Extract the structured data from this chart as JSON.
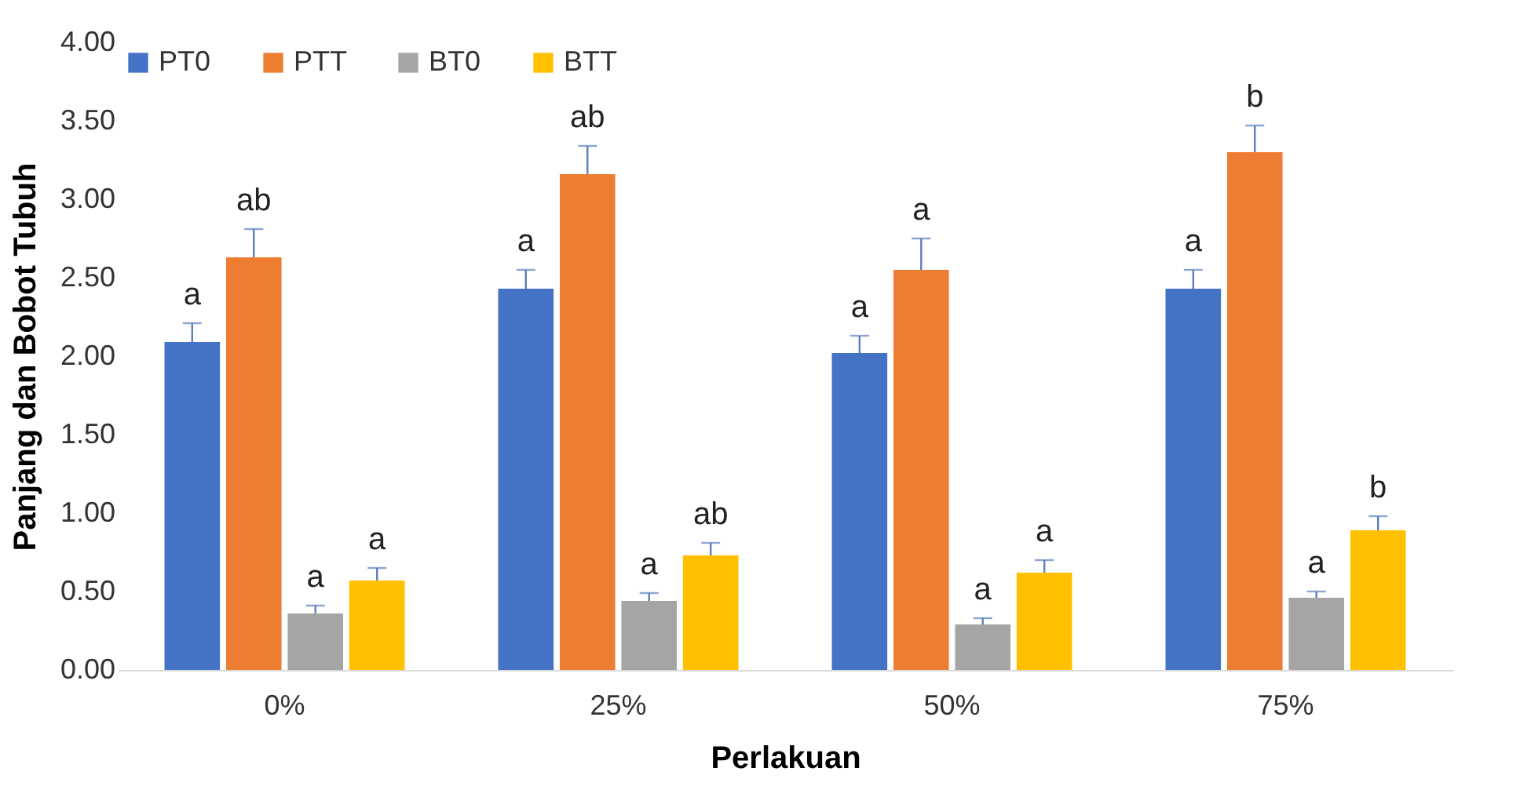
{
  "chart_data": {
    "type": "bar",
    "xlabel": "Perlakuan",
    "ylabel": "Panjang dan Bobot Tubuh",
    "categories": [
      "0%",
      "25%",
      "50%",
      "75%"
    ],
    "series": [
      {
        "name": "PT0",
        "color": "#4472c4",
        "values": [
          2.09,
          2.43,
          2.02,
          2.43
        ],
        "errors": [
          [
            2.09,
            2.21
          ],
          [
            2.43,
            2.55
          ],
          [
            2.02,
            2.13
          ],
          [
            2.43,
            2.55
          ]
        ],
        "value_labels": [
          "a",
          "a",
          "a",
          "a"
        ]
      },
      {
        "name": "PTT",
        "color": "#ed7d31",
        "values": [
          2.63,
          3.16,
          2.55,
          3.3
        ],
        "errors": [
          [
            2.63,
            2.81
          ],
          [
            3.16,
            3.34
          ],
          [
            2.55,
            2.75
          ],
          [
            3.3,
            3.47
          ]
        ],
        "value_labels": [
          "ab",
          "ab",
          "a",
          "b"
        ]
      },
      {
        "name": "BT0",
        "color": "#a5a5a5",
        "values": [
          0.36,
          0.44,
          0.29,
          0.46
        ],
        "errors": [
          [
            0.36,
            0.41
          ],
          [
            0.44,
            0.49
          ],
          [
            0.29,
            0.33
          ],
          [
            0.46,
            0.5
          ]
        ],
        "value_labels": [
          "a",
          "a",
          "a",
          "a"
        ]
      },
      {
        "name": "BTT",
        "color": "#ffc000",
        "values": [
          0.57,
          0.73,
          0.62,
          0.89
        ],
        "errors": [
          [
            0.57,
            0.65
          ],
          [
            0.73,
            0.81
          ],
          [
            0.62,
            0.7
          ],
          [
            0.89,
            0.98
          ]
        ],
        "value_labels": [
          "a",
          "ab",
          "a",
          "b"
        ]
      }
    ],
    "ylim": [
      0,
      4
    ],
    "yticks": [
      {
        "value": 0,
        "label": "0.00"
      },
      {
        "value": 0.5,
        "label": "0.50"
      },
      {
        "value": 1,
        "label": "1.00"
      },
      {
        "value": 1.5,
        "label": "1.50"
      },
      {
        "value": 2,
        "label": "2.00"
      },
      {
        "value": 2.5,
        "label": "2.50"
      },
      {
        "value": 3,
        "label": "3.00"
      },
      {
        "value": 3.5,
        "label": "3.50"
      },
      {
        "value": 4,
        "label": "4.00"
      }
    ],
    "grid": false,
    "legend": "top left"
  }
}
